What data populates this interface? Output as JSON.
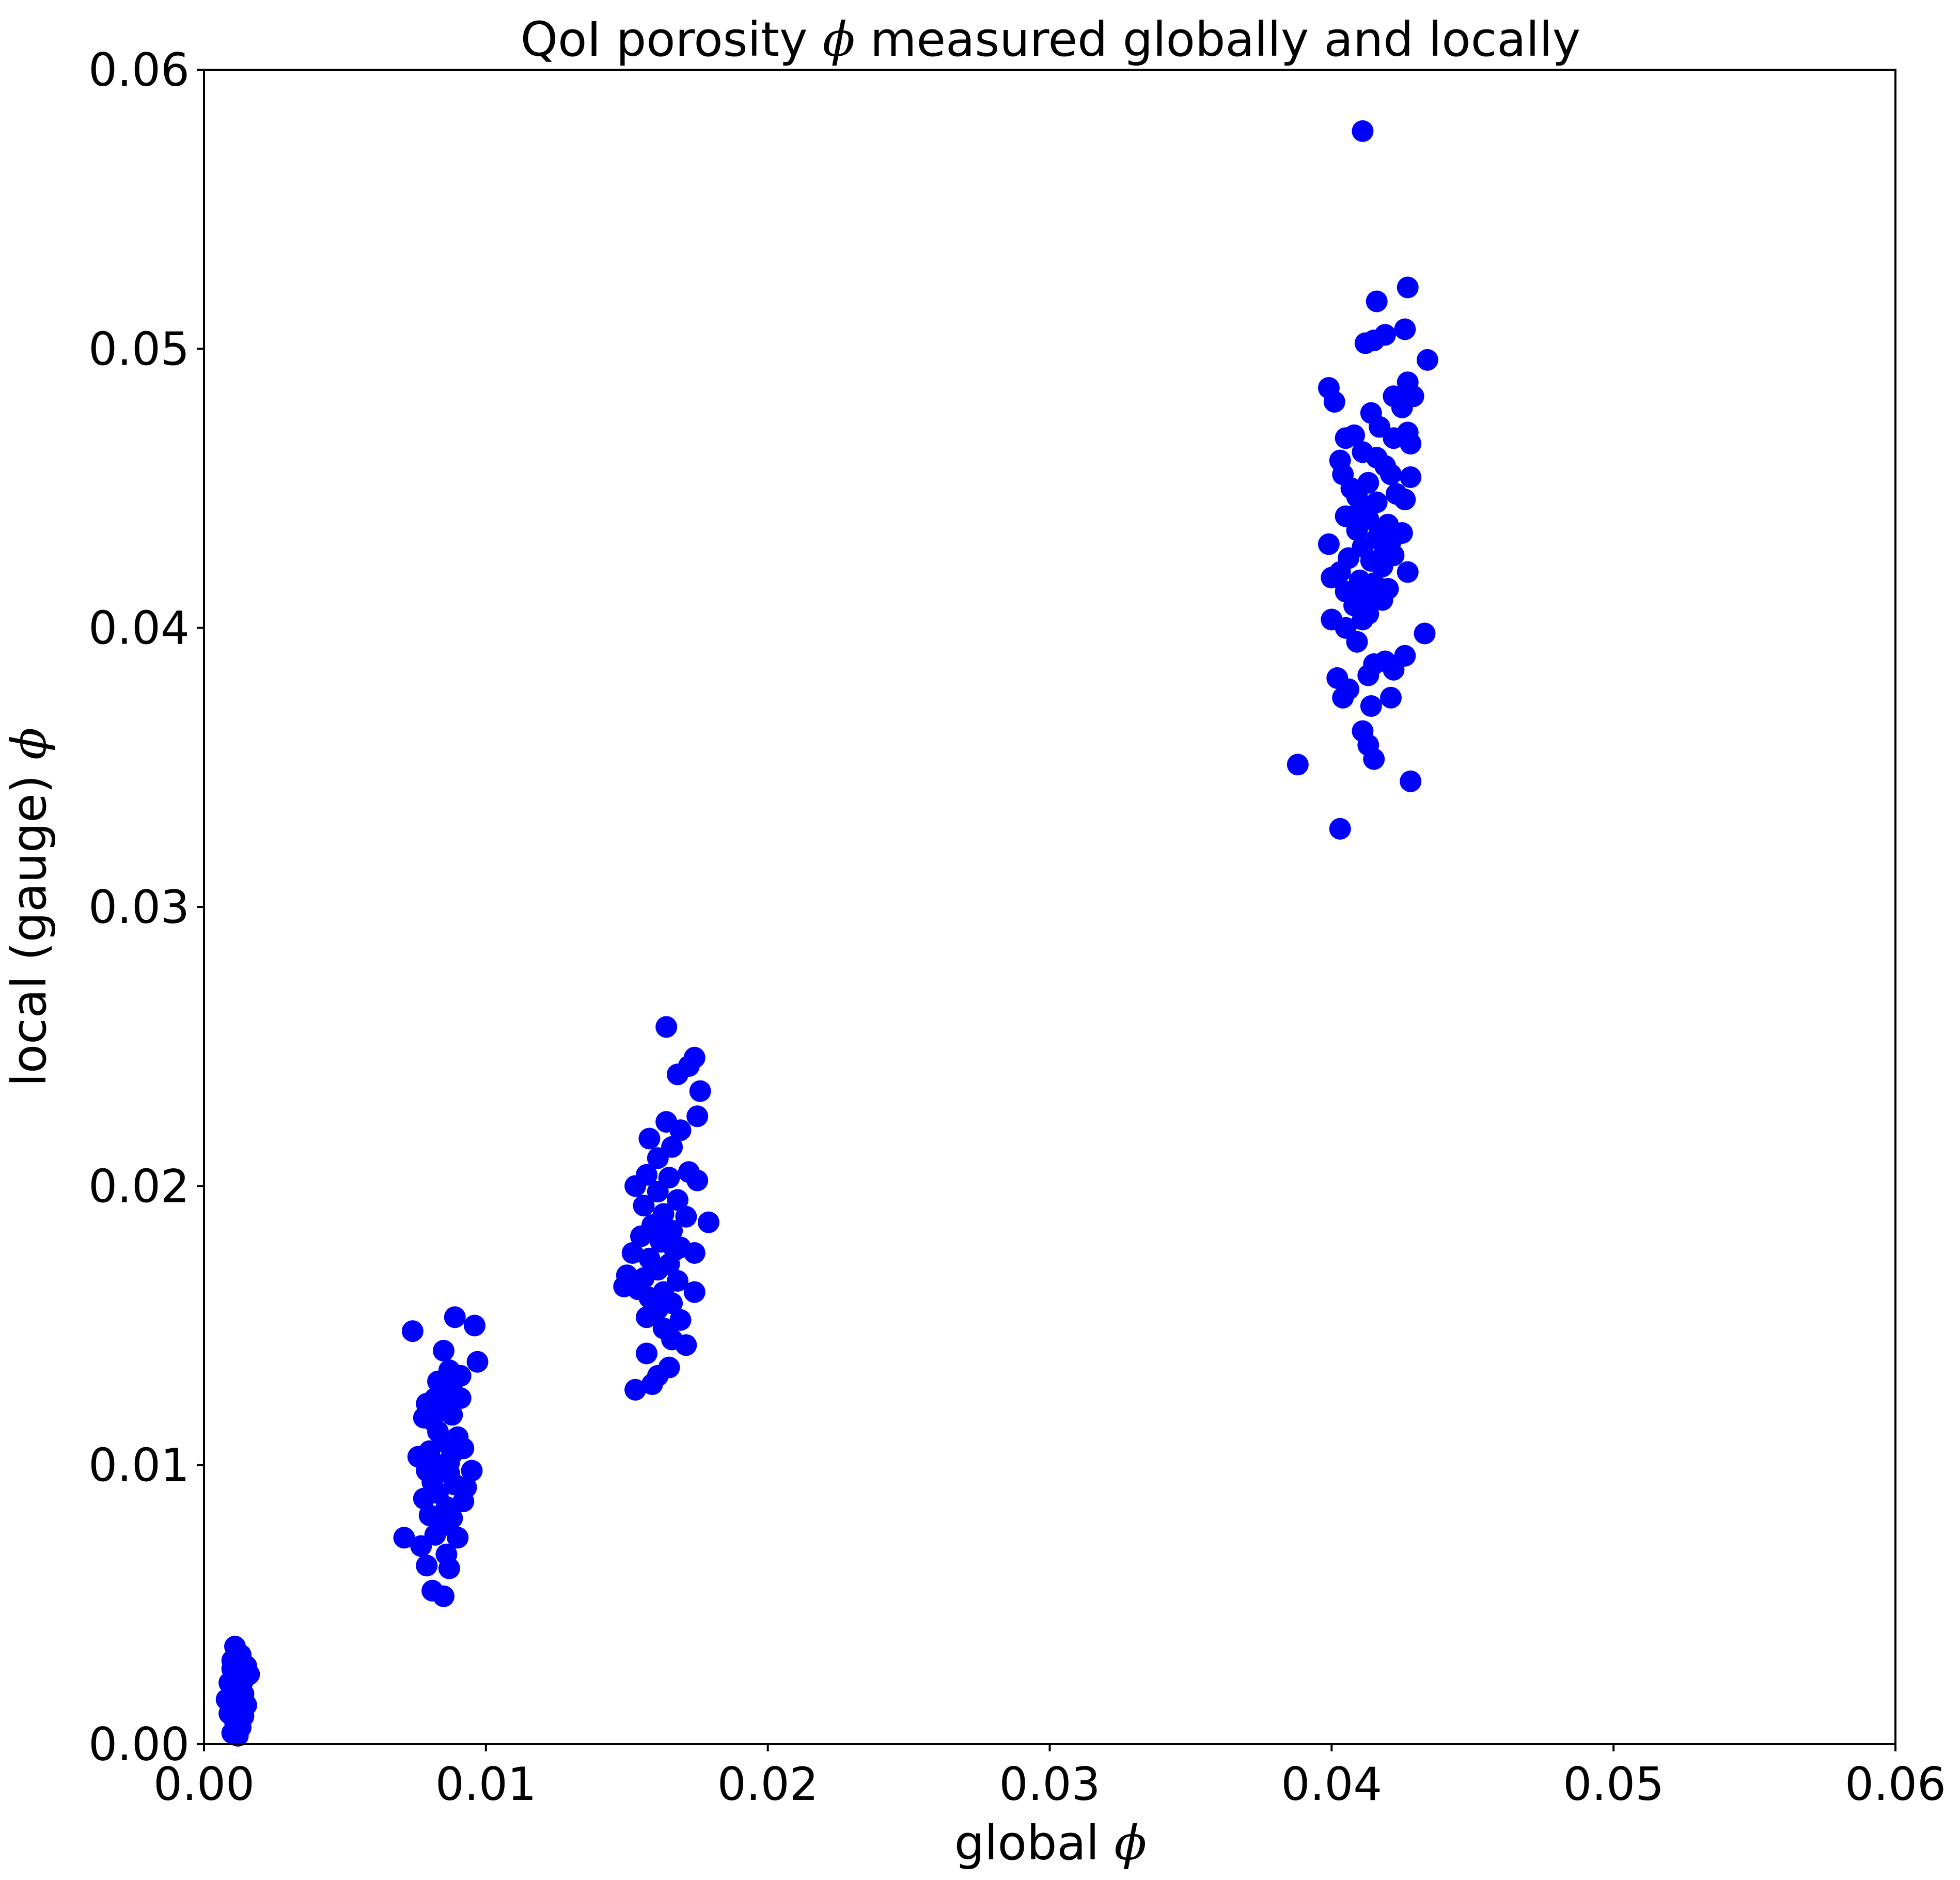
{
  "chart_data": {
    "type": "scatter",
    "title_prefix": "QoI porosity ",
    "title_symbol": "ϕ",
    "title_suffix": " measured globally and locally",
    "xlabel_text": "global ",
    "xlabel_symbol": "ϕ",
    "ylabel_text": "local (gauge) ",
    "ylabel_symbol": "ϕ",
    "xlim": [
      0.0,
      0.06
    ],
    "ylim": [
      0.0,
      0.06
    ],
    "xticks": [
      "0.00",
      "0.01",
      "0.02",
      "0.03",
      "0.04",
      "0.05",
      "0.06"
    ],
    "yticks": [
      "0.00",
      "0.01",
      "0.02",
      "0.03",
      "0.04",
      "0.05",
      "0.06"
    ],
    "grid": false,
    "legend": "none",
    "marker_color": "#0000ff",
    "series": [
      {
        "points": [
          [
            0.0011,
            0.0035
          ],
          [
            0.0013,
            0.0032
          ],
          [
            0.0015,
            0.0028
          ],
          [
            0.001,
            0.0027
          ],
          [
            0.0012,
            0.0025
          ],
          [
            0.0009,
            0.0022
          ],
          [
            0.0016,
            0.0025
          ],
          [
            0.0013,
            0.0021
          ],
          [
            0.001,
            0.0019
          ],
          [
            0.0014,
            0.0018
          ],
          [
            0.0008,
            0.0016
          ],
          [
            0.0011,
            0.0015
          ],
          [
            0.0015,
            0.0014
          ],
          [
            0.0012,
            0.0012
          ],
          [
            0.0009,
            0.0011
          ],
          [
            0.0014,
            0.001
          ],
          [
            0.0011,
            0.0008
          ],
          [
            0.0013,
            0.0006
          ],
          [
            0.001,
            0.0004
          ],
          [
            0.0012,
            0.0003
          ],
          [
            0.0014,
            0.0023
          ],
          [
            0.001,
            0.003
          ],
          [
            0.0013,
            0.0016
          ],
          [
            0.0074,
            0.0148
          ],
          [
            0.0089,
            0.0153
          ],
          [
            0.0096,
            0.015
          ],
          [
            0.0097,
            0.0137
          ],
          [
            0.0085,
            0.0141
          ],
          [
            0.0087,
            0.0134
          ],
          [
            0.0083,
            0.013
          ],
          [
            0.0091,
            0.0132
          ],
          [
            0.0088,
            0.0127
          ],
          [
            0.0082,
            0.0124
          ],
          [
            0.0079,
            0.0122
          ],
          [
            0.0091,
            0.0124
          ],
          [
            0.0085,
            0.012
          ],
          [
            0.0088,
            0.0118
          ],
          [
            0.0081,
            0.0116
          ],
          [
            0.0078,
            0.0117
          ],
          [
            0.0083,
            0.0112
          ],
          [
            0.009,
            0.011
          ],
          [
            0.0086,
            0.0108
          ],
          [
            0.008,
            0.0105
          ],
          [
            0.0076,
            0.0103
          ],
          [
            0.0088,
            0.0104
          ],
          [
            0.0092,
            0.0106
          ],
          [
            0.0084,
            0.01
          ],
          [
            0.0079,
            0.0098
          ],
          [
            0.0087,
            0.0097
          ],
          [
            0.0095,
            0.0098
          ],
          [
            0.0081,
            0.0094
          ],
          [
            0.0089,
            0.0093
          ],
          [
            0.0083,
            0.009
          ],
          [
            0.0078,
            0.0088
          ],
          [
            0.0092,
            0.0087
          ],
          [
            0.0086,
            0.0085
          ],
          [
            0.008,
            0.0082
          ],
          [
            0.0088,
            0.0081
          ],
          [
            0.0084,
            0.0078
          ],
          [
            0.0082,
            0.0075
          ],
          [
            0.009,
            0.0074
          ],
          [
            0.0071,
            0.0074
          ],
          [
            0.0077,
            0.0071
          ],
          [
            0.0086,
            0.0068
          ],
          [
            0.0079,
            0.0064
          ],
          [
            0.0087,
            0.0063
          ],
          [
            0.0081,
            0.0055
          ],
          [
            0.0085,
            0.0053
          ],
          [
            0.0093,
            0.0092
          ],
          [
            0.0084,
            0.0128
          ],
          [
            0.0087,
            0.0101
          ],
          [
            0.0164,
            0.0257
          ],
          [
            0.0174,
            0.0246
          ],
          [
            0.0172,
            0.0243
          ],
          [
            0.0168,
            0.024
          ],
          [
            0.0176,
            0.0234
          ],
          [
            0.0175,
            0.0225
          ],
          [
            0.0164,
            0.0223
          ],
          [
            0.0169,
            0.022
          ],
          [
            0.0158,
            0.0217
          ],
          [
            0.0166,
            0.0214
          ],
          [
            0.0161,
            0.021
          ],
          [
            0.0172,
            0.0205
          ],
          [
            0.0157,
            0.0204
          ],
          [
            0.0165,
            0.0203
          ],
          [
            0.0175,
            0.0202
          ],
          [
            0.0153,
            0.02
          ],
          [
            0.0161,
            0.0198
          ],
          [
            0.0168,
            0.0195
          ],
          [
            0.0156,
            0.0193
          ],
          [
            0.0163,
            0.019
          ],
          [
            0.0171,
            0.0189
          ],
          [
            0.0179,
            0.0187
          ],
          [
            0.0159,
            0.0186
          ],
          [
            0.0166,
            0.0184
          ],
          [
            0.0155,
            0.0182
          ],
          [
            0.0162,
            0.018
          ],
          [
            0.0169,
            0.0178
          ],
          [
            0.0174,
            0.0176
          ],
          [
            0.0152,
            0.0176
          ],
          [
            0.0158,
            0.0174
          ],
          [
            0.0165,
            0.0172
          ],
          [
            0.0161,
            0.017
          ],
          [
            0.015,
            0.0168
          ],
          [
            0.0156,
            0.0167
          ],
          [
            0.0168,
            0.0166
          ],
          [
            0.0149,
            0.0164
          ],
          [
            0.0154,
            0.0163
          ],
          [
            0.0163,
            0.0162
          ],
          [
            0.0174,
            0.0162
          ],
          [
            0.0158,
            0.016
          ],
          [
            0.0166,
            0.0158
          ],
          [
            0.0161,
            0.0156
          ],
          [
            0.0157,
            0.0153
          ],
          [
            0.0169,
            0.0152
          ],
          [
            0.0163,
            0.0149
          ],
          [
            0.0166,
            0.0145
          ],
          [
            0.0171,
            0.0143
          ],
          [
            0.0157,
            0.014
          ],
          [
            0.0165,
            0.0135
          ],
          [
            0.0161,
            0.0132
          ],
          [
            0.0159,
            0.0129
          ],
          [
            0.0153,
            0.0127
          ],
          [
            0.016,
            0.0171
          ],
          [
            0.0167,
            0.0177
          ],
          [
            0.0162,
            0.0185
          ],
          [
            0.0411,
            0.0578
          ],
          [
            0.0427,
            0.0522
          ],
          [
            0.0416,
            0.0517
          ],
          [
            0.0426,
            0.0507
          ],
          [
            0.0419,
            0.0505
          ],
          [
            0.0415,
            0.0503
          ],
          [
            0.0412,
            0.0502
          ],
          [
            0.0434,
            0.0496
          ],
          [
            0.0427,
            0.0488
          ],
          [
            0.0399,
            0.0486
          ],
          [
            0.0422,
            0.0483
          ],
          [
            0.0429,
            0.0483
          ],
          [
            0.0401,
            0.0481
          ],
          [
            0.0425,
            0.0479
          ],
          [
            0.0414,
            0.0477
          ],
          [
            0.0417,
            0.0472
          ],
          [
            0.0427,
            0.047
          ],
          [
            0.0408,
            0.0469
          ],
          [
            0.0405,
            0.0468
          ],
          [
            0.0422,
            0.0468
          ],
          [
            0.0428,
            0.0466
          ],
          [
            0.0411,
            0.0463
          ],
          [
            0.0416,
            0.0461
          ],
          [
            0.0403,
            0.046
          ],
          [
            0.0419,
            0.0458
          ],
          [
            0.0421,
            0.0455
          ],
          [
            0.0404,
            0.0455
          ],
          [
            0.0428,
            0.0454
          ],
          [
            0.0413,
            0.0452
          ],
          [
            0.0407,
            0.045
          ],
          [
            0.0423,
            0.0448
          ],
          [
            0.0426,
            0.0446
          ],
          [
            0.0416,
            0.0445
          ],
          [
            0.041,
            0.0442
          ],
          [
            0.0405,
            0.044
          ],
          [
            0.0413,
            0.0439
          ],
          [
            0.042,
            0.0437
          ],
          [
            0.0409,
            0.0435
          ],
          [
            0.0425,
            0.0434
          ],
          [
            0.0416,
            0.0432
          ],
          [
            0.0399,
            0.043
          ],
          [
            0.0411,
            0.0429
          ],
          [
            0.0419,
            0.0428
          ],
          [
            0.0422,
            0.0426
          ],
          [
            0.0406,
            0.0425
          ],
          [
            0.0414,
            0.0424
          ],
          [
            0.0418,
            0.0422
          ],
          [
            0.0427,
            0.042
          ],
          [
            0.0403,
            0.042
          ],
          [
            0.04,
            0.0418
          ],
          [
            0.041,
            0.0417
          ],
          [
            0.0415,
            0.0416
          ],
          [
            0.042,
            0.0414
          ],
          [
            0.0405,
            0.0413
          ],
          [
            0.0412,
            0.0411
          ],
          [
            0.0418,
            0.041
          ],
          [
            0.0408,
            0.0408
          ],
          [
            0.0413,
            0.0405
          ],
          [
            0.0411,
            0.0403
          ],
          [
            0.04,
            0.0403
          ],
          [
            0.0405,
            0.04
          ],
          [
            0.0433,
            0.0398
          ],
          [
            0.0409,
            0.0395
          ],
          [
            0.0426,
            0.039
          ],
          [
            0.0419,
            0.0388
          ],
          [
            0.0415,
            0.0387
          ],
          [
            0.0422,
            0.0385
          ],
          [
            0.0413,
            0.0383
          ],
          [
            0.0402,
            0.0382
          ],
          [
            0.0406,
            0.0378
          ],
          [
            0.0404,
            0.0375
          ],
          [
            0.0421,
            0.0375
          ],
          [
            0.0414,
            0.0372
          ],
          [
            0.0411,
            0.0363
          ],
          [
            0.0413,
            0.0358
          ],
          [
            0.0415,
            0.0353
          ],
          [
            0.0388,
            0.0351
          ],
          [
            0.0428,
            0.0345
          ],
          [
            0.0403,
            0.0328
          ],
          [
            0.0417,
            0.0434
          ],
          [
            0.0409,
            0.0447
          ],
          [
            0.0421,
            0.0431
          ]
        ]
      }
    ]
  }
}
